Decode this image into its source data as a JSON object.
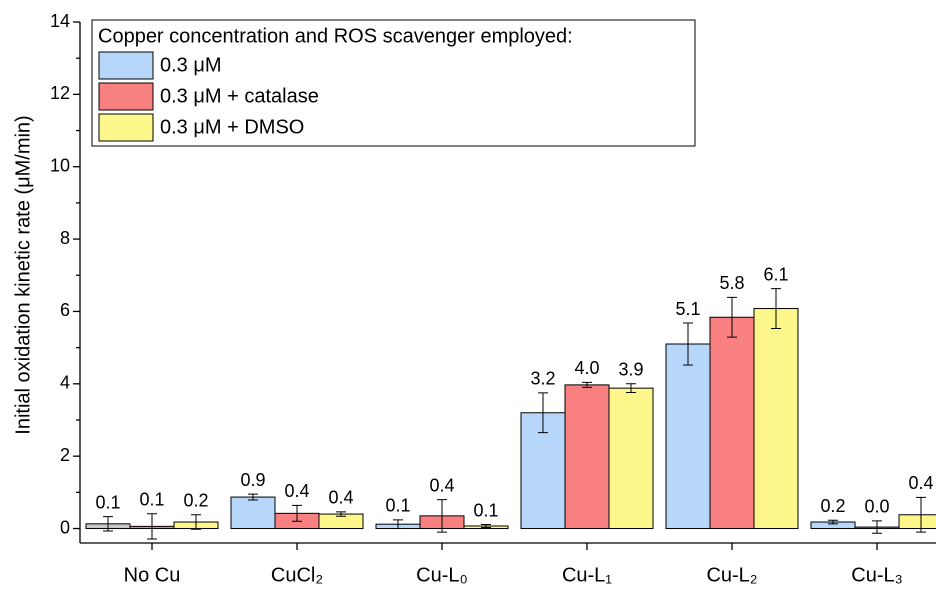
{
  "chart_data": {
    "type": "bar",
    "ylabel": "Initial oxidation kinetic rate (μM/min)",
    "legend_title": "Copper concentration and ROS scavenger employed:",
    "categories": [
      "No Cu",
      "CuCl₂",
      "Cu-L₀",
      "Cu-L₁",
      "Cu-L₂",
      "Cu-L₃"
    ],
    "series": [
      {
        "name": "0.3 μM",
        "color": "#b7d7fa",
        "colors": [
          "#c8c8c8",
          "#b7d7fa",
          "#b7d7fa",
          "#b7d7fa",
          "#b7d7fa",
          "#b7d7fa"
        ],
        "values": [
          0.13,
          0.87,
          0.12,
          3.2,
          5.1,
          0.18
        ],
        "errors": [
          0.2,
          0.08,
          0.12,
          0.55,
          0.58,
          0.05
        ],
        "value_labels": [
          "0.1",
          "0.9",
          "0.1",
          "3.2",
          "5.1",
          "0.2"
        ]
      },
      {
        "name": "0.3 μM + catalase",
        "color": "#f88080",
        "values": [
          0.06,
          0.42,
          0.35,
          3.97,
          5.84,
          0.04
        ],
        "errors": [
          0.35,
          0.22,
          0.45,
          0.07,
          0.55,
          0.17
        ],
        "value_labels": [
          "0.1",
          "0.4",
          "0.4",
          "4.0",
          "5.8",
          "0.0"
        ]
      },
      {
        "name": "0.3 μM + DMSO",
        "color": "#fdf68a",
        "values": [
          0.18,
          0.4,
          0.07,
          3.88,
          6.08,
          0.38
        ],
        "errors": [
          0.2,
          0.06,
          0.04,
          0.12,
          0.55,
          0.48
        ],
        "value_labels": [
          "0.2",
          "0.4",
          "0.1",
          "3.9",
          "6.1",
          "0.4"
        ]
      }
    ],
    "ylim": [
      -0.4,
      14
    ],
    "yticks": [
      0,
      2,
      4,
      6,
      8,
      10,
      12,
      14
    ]
  }
}
